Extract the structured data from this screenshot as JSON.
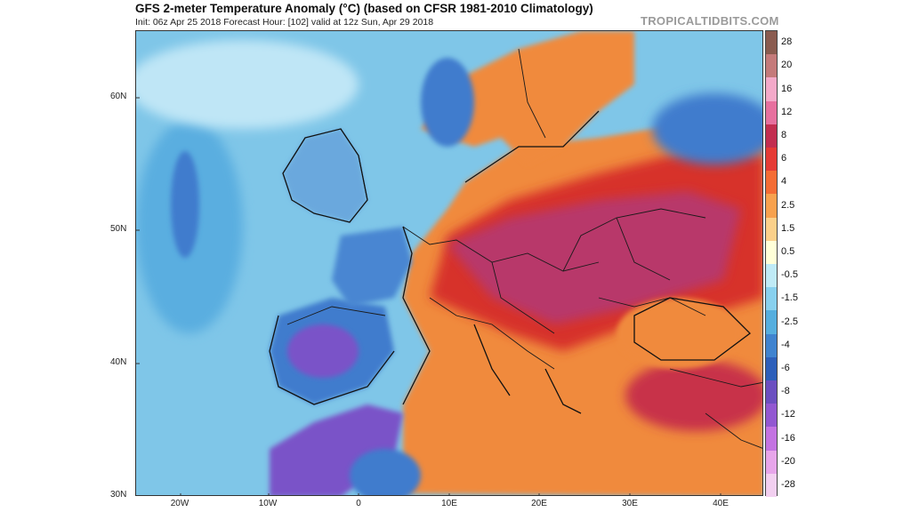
{
  "header": {
    "title": "GFS 2-meter Temperature Anomaly (°C) (based on CFSR 1981-2010 Climatology)",
    "subtitle": "Init: 06z Apr 25 2018   Forecast Hour: [102]   valid at 12z Sun, Apr 29 2018",
    "credit": "TROPICALTIDBITS.COM"
  },
  "map": {
    "lat_labels": [
      "60N",
      "50N",
      "40N",
      "30N"
    ],
    "lon_labels": [
      "20W",
      "10W",
      "0",
      "10E",
      "20E",
      "30E",
      "40E"
    ],
    "colors": {
      "ocean": "#7fc6e8",
      "ocean_cool": "#5aaee0",
      "warm_orange": "#f08a3c",
      "hot_red": "#d7302a",
      "hot_magenta": "#b8386a",
      "cool_blue": "#3f7ccd",
      "cold_purple": "#7a52c8",
      "border": "#1a1a1a"
    }
  },
  "colorbar": {
    "labels": [
      "28",
      "20",
      "16",
      "12",
      "8",
      "6",
      "4",
      "2.5",
      "1.5",
      "0.5",
      "-0.5",
      "-1.5",
      "-2.5",
      "-4",
      "-6",
      "-8",
      "-12",
      "-16",
      "-20",
      "-28"
    ],
    "colors": [
      "#8a5b4f",
      "#c47a7a",
      "#f3a9c9",
      "#e6709e",
      "#c22e50",
      "#e53b35",
      "#f46c34",
      "#f7a14e",
      "#fbd08a",
      "#ffffd8",
      "#bfeaf6",
      "#88d0ee",
      "#55aede",
      "#3f83cf",
      "#2d5fba",
      "#6b4fc0",
      "#9258d1",
      "#c373e1",
      "#e7a5ea",
      "#f2cff0"
    ]
  }
}
